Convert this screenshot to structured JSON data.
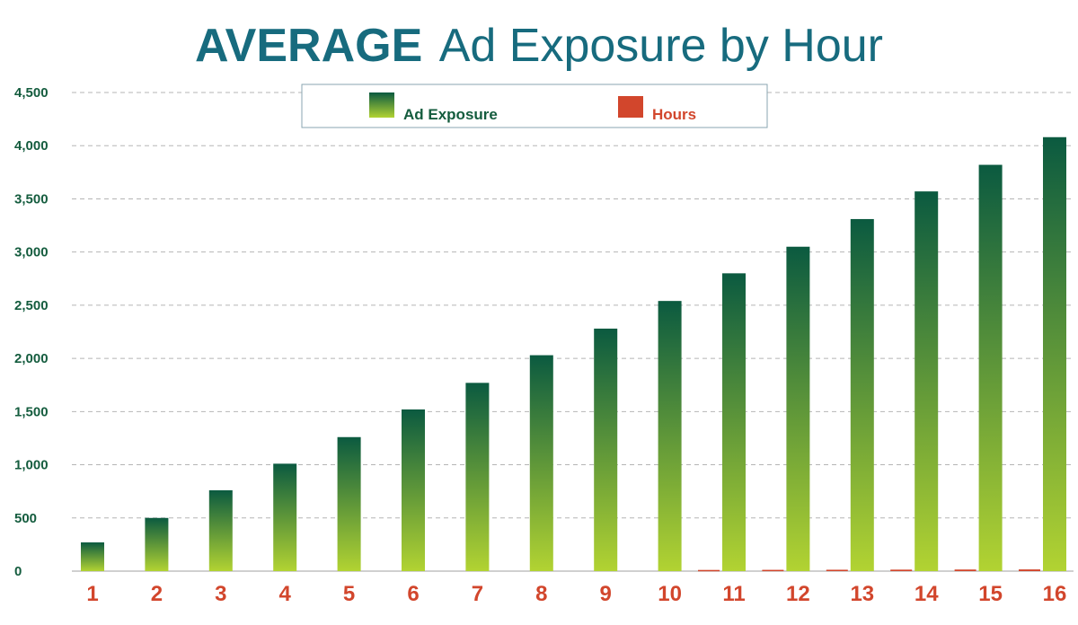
{
  "chart_data": {
    "type": "bar",
    "title_emphasis": "AVERAGE",
    "title_rest": "Ad Exposure by Hour",
    "categories": [
      "1",
      "2",
      "3",
      "4",
      "5",
      "6",
      "7",
      "8",
      "9",
      "10",
      "11",
      "12",
      "13",
      "14",
      "15",
      "16"
    ],
    "series": [
      {
        "name": "Ad Exposure",
        "values": [
          270,
          500,
          760,
          1010,
          1260,
          1520,
          1770,
          2030,
          2280,
          2540,
          2800,
          3050,
          3310,
          3570,
          3820,
          4080
        ]
      },
      {
        "name": "Hours",
        "values": [
          0,
          0,
          0,
          0,
          0,
          0,
          0,
          0,
          0,
          0,
          11,
          12,
          13,
          14,
          15,
          16
        ]
      }
    ],
    "ylim": [
      0,
      4500
    ],
    "yticks": [
      "0",
      "500",
      "1,000",
      "1,500",
      "2,000",
      "2,500",
      "3,000",
      "3,500",
      "4,000",
      "4,500"
    ],
    "ytick_values": [
      0,
      500,
      1000,
      1500,
      2000,
      2500,
      3000,
      3500,
      4000,
      4500
    ],
    "grid": true,
    "legend_position": "top-center",
    "colors": {
      "title": "#176b7e",
      "ytick": "#145c3e",
      "xtick": "#d2462c",
      "bar_top": "#0b5a40",
      "bar_bottom": "#b2d332",
      "hours": "#d2462c",
      "legend_hours_text": "#d2462c",
      "legend_exposure_text": "#145c3e",
      "grid": "#b5b5b5",
      "legend_border": "#8aa6b0"
    }
  }
}
